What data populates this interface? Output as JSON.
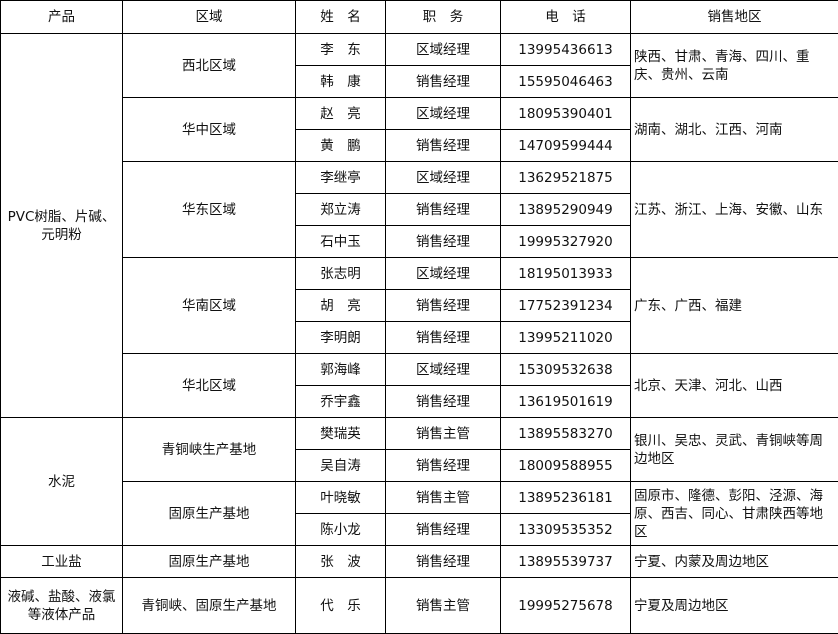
{
  "headers": [
    "产品",
    "区域",
    "姓　名",
    "职　务",
    "电　话",
    "销售地区"
  ],
  "groups": [
    {
      "product": "PVC树脂、片碱、元明粉",
      "regions": [
        {
          "region": "西北区域",
          "area": "陕西、甘肃、青海、四川、重庆、贵州、云南",
          "people": [
            {
              "name": "李　东",
              "title": "区域经理",
              "phone": "13995436613"
            },
            {
              "name": "韩　康",
              "title": "销售经理",
              "phone": "15595046463"
            }
          ]
        },
        {
          "region": "华中区域",
          "area": "湖南、湖北、江西、河南",
          "people": [
            {
              "name": "赵　亮",
              "title": "区域经理",
              "phone": "18095390401"
            },
            {
              "name": "黄　鹏",
              "title": "销售经理",
              "phone": "14709599444"
            }
          ]
        },
        {
          "region": "华东区域",
          "area": "江苏、浙江、上海、安徽、山东",
          "people": [
            {
              "name": "李继亭",
              "title": "区域经理",
              "phone": "13629521875"
            },
            {
              "name": "郑立涛",
              "title": "销售经理",
              "phone": "13895290949"
            },
            {
              "name": "石中玉",
              "title": "销售经理",
              "phone": "19995327920"
            }
          ]
        },
        {
          "region": "华南区域",
          "area": "广东、广西、福建",
          "people": [
            {
              "name": "张志明",
              "title": "区域经理",
              "phone": "18195013933"
            },
            {
              "name": "胡　亮",
              "title": "销售经理",
              "phone": "17752391234"
            },
            {
              "name": "李明朗",
              "title": "销售经理",
              "phone": "13995211020"
            }
          ]
        },
        {
          "region": "华北区域",
          "area": "北京、天津、河北、山西",
          "people": [
            {
              "name": "郭海峰",
              "title": "区域经理",
              "phone": "15309532638"
            },
            {
              "name": "乔宇鑫",
              "title": "销售经理",
              "phone": "13619501619"
            }
          ]
        }
      ]
    },
    {
      "product": "水泥",
      "regions": [
        {
          "region": "青铜峡生产基地",
          "area": "银川、吴忠、灵武、青铜峡等周边地区",
          "people": [
            {
              "name": "樊瑞英",
              "title": "销售主管",
              "phone": "13895583270"
            },
            {
              "name": "吴自涛",
              "title": "销售经理",
              "phone": "18009588955"
            }
          ]
        },
        {
          "region": "固原生产基地",
          "area": "固原市、隆德、彭阳、泾源、海原、西吉、同心、甘肃陕西等地区",
          "people": [
            {
              "name": "叶晓敏",
              "title": "销售主管",
              "phone": "13895236181"
            },
            {
              "name": "陈小龙",
              "title": "销售经理",
              "phone": "13309535352"
            }
          ]
        }
      ]
    },
    {
      "product": "工业盐",
      "regions": [
        {
          "region": "固原生产基地",
          "area": "宁夏、内蒙及周边地区",
          "people": [
            {
              "name": "张　波",
              "title": "销售经理",
              "phone": "13895539737"
            }
          ]
        }
      ]
    },
    {
      "product": "液碱、盐酸、液氯等液体产品",
      "regions": [
        {
          "region": "青铜峡、固原生产基地",
          "area": "宁夏及周边地区",
          "people": [
            {
              "name": "代　乐",
              "title": "销售主管",
              "phone": "19995275678"
            }
          ]
        }
      ]
    }
  ]
}
